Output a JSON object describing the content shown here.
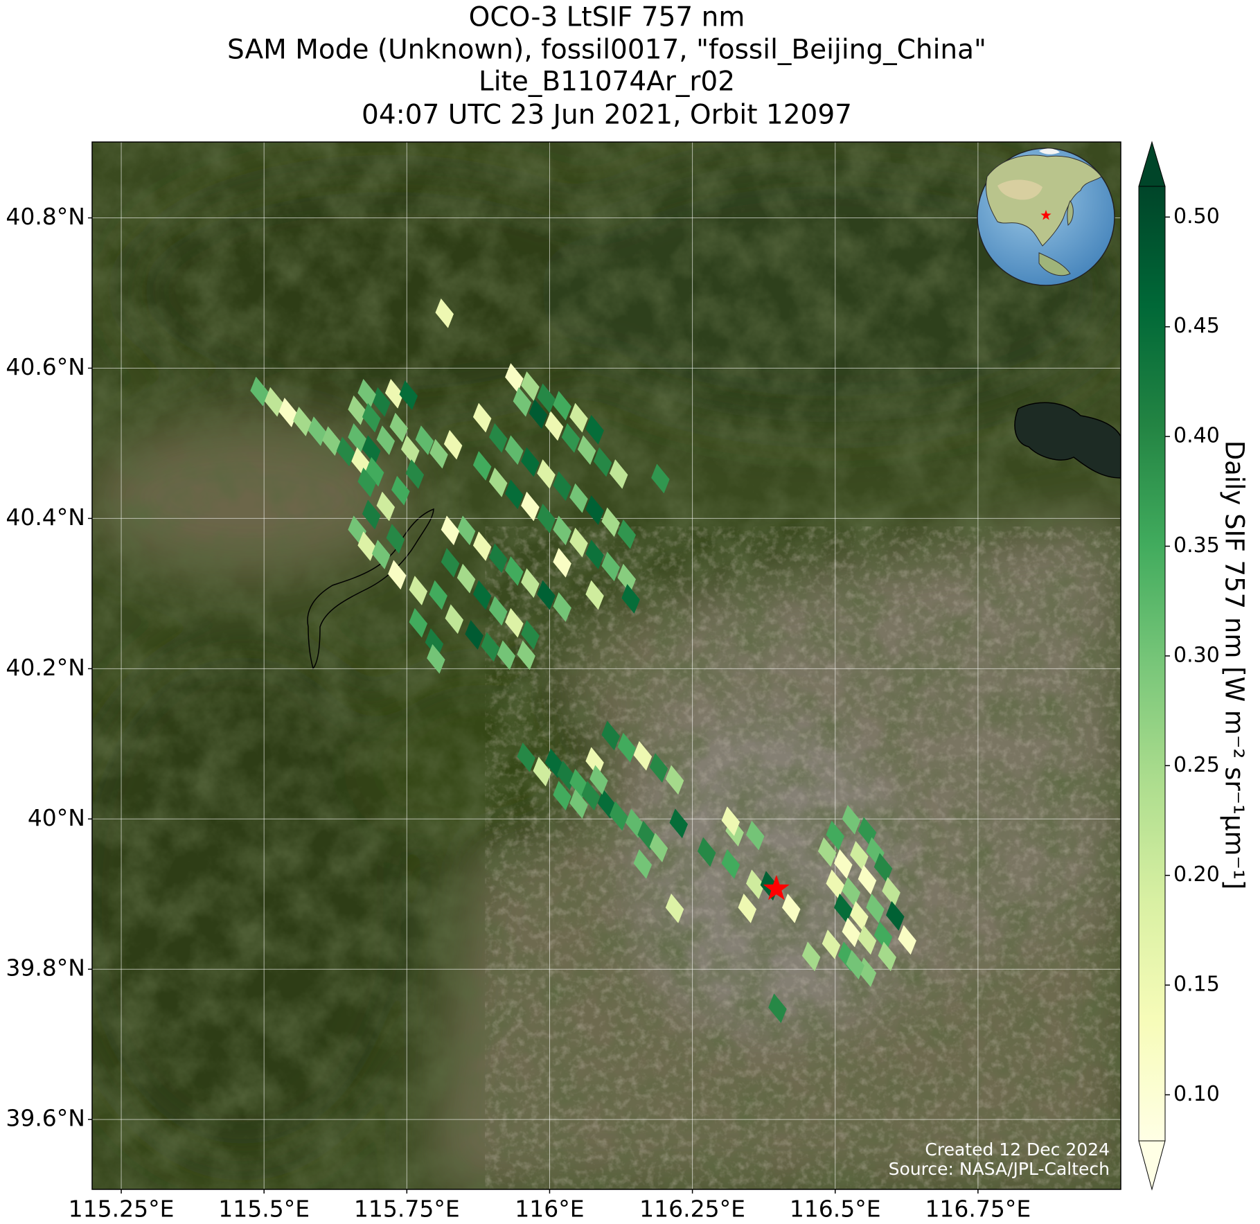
{
  "chart_data": {
    "type": "map",
    "title": [
      "OCO-3 LtSIF 757 nm",
      "SAM Mode (Unknown), fossil0017, \"fossil_Beijing_China\"",
      "Lite_B11074Ar_r02",
      "04:07 UTC 23 Jun 2021, Orbit 12097"
    ],
    "xlim": [
      115.199,
      117.0
    ],
    "ylim": [
      39.507,
      40.901
    ],
    "xticks": [
      {
        "value": 115.25,
        "label": "115.25°E"
      },
      {
        "value": 115.5,
        "label": "115.5°E"
      },
      {
        "value": 115.75,
        "label": "115.75°E"
      },
      {
        "value": 116,
        "label": "116°E"
      },
      {
        "value": 116.25,
        "label": "116.25°E"
      },
      {
        "value": 116.5,
        "label": "116.5°E"
      },
      {
        "value": 116.75,
        "label": "116.75°E"
      }
    ],
    "yticks": [
      {
        "value": 39.6,
        "label": "39.6°N"
      },
      {
        "value": 39.8,
        "label": "39.8°N"
      },
      {
        "value": 40,
        "label": "40°N"
      },
      {
        "value": 40.2,
        "label": "40.2°N"
      },
      {
        "value": 40.4,
        "label": "40.4°N"
      },
      {
        "value": 40.6,
        "label": "40.6°N"
      },
      {
        "value": 40.8,
        "label": "40.8°N"
      }
    ],
    "grid": true,
    "footprints": {
      "lon": [
        115.492,
        115.517,
        115.542,
        115.567,
        115.593,
        115.618,
        115.643,
        115.663,
        115.669,
        115.688,
        115.694,
        115.713,
        115.736,
        115.728,
        115.705,
        115.68,
        115.663,
        115.688,
        115.753,
        115.756,
        115.781,
        115.806,
        115.831,
        115.764,
        115.739,
        115.713,
        115.68,
        115.688,
        115.663,
        115.68,
        115.705,
        115.73,
        115.733,
        115.77,
        115.816,
        115.938,
        115.966,
        115.994,
        116.022,
        116.051,
        116.079,
        115.952,
        115.98,
        116.008,
        116.037,
        116.065,
        116.093,
        116.121,
        115.882,
        115.91,
        115.938,
        115.966,
        115.994,
        116.022,
        116.051,
        116.079,
        116.107,
        116.135,
        115.882,
        115.91,
        115.938,
        115.966,
        115.994,
        116.022,
        116.051,
        116.079,
        116.107,
        116.135,
        115.854,
        115.882,
        115.91,
        115.938,
        115.966,
        115.994,
        116.022,
        115.826,
        115.854,
        115.882,
        115.91,
        115.938,
        115.966,
        115.805,
        115.833,
        115.868,
        115.896,
        115.924,
        115.959,
        115.77,
        115.798,
        115.801,
        116.142,
        116.194,
        115.826,
        116.022,
        116.079,
        115.959,
        115.987,
        116.008,
        116.029,
        116.051,
        116.079,
        116.072,
        116.1,
        116.086,
        116.121,
        116.149,
        116.17,
        116.191,
        116.226,
        116.163,
        116.107,
        116.135,
        116.163,
        116.191,
        116.219,
        116.022,
        116.051,
        116.275,
        116.317,
        116.36,
        116.346,
        116.385,
        116.423,
        116.324,
        116.36,
        116.317,
        116.219,
        116.399,
        116.5,
        116.528,
        116.556,
        116.486,
        116.514,
        116.542,
        116.57,
        116.584,
        116.5,
        116.528,
        116.556,
        116.598,
        116.514,
        116.542,
        116.57,
        116.605,
        116.528,
        116.556,
        116.584,
        116.626,
        116.591,
        116.458,
        116.493,
        116.521,
        116.556,
        116.535
      ],
      "lat": [
        40.569,
        40.555,
        40.541,
        40.529,
        40.516,
        40.503,
        40.489,
        40.507,
        40.475,
        40.491,
        40.462,
        40.504,
        40.521,
        40.566,
        40.555,
        40.566,
        40.544,
        40.534,
        40.564,
        40.491,
        40.504,
        40.486,
        40.498,
        40.459,
        40.437,
        40.416,
        40.448,
        40.405,
        40.384,
        40.363,
        40.352,
        40.373,
        40.325,
        40.304,
        40.673,
        40.587,
        40.576,
        40.56,
        40.55,
        40.534,
        40.518,
        40.555,
        40.539,
        40.523,
        40.507,
        40.491,
        40.475,
        40.459,
        40.534,
        40.507,
        40.491,
        40.475,
        40.459,
        40.443,
        40.427,
        40.411,
        40.395,
        40.379,
        40.47,
        40.448,
        40.432,
        40.416,
        40.4,
        40.384,
        40.368,
        40.352,
        40.336,
        40.32,
        40.384,
        40.363,
        40.347,
        40.33,
        40.314,
        40.298,
        40.282,
        40.341,
        40.32,
        40.298,
        40.277,
        40.261,
        40.245,
        40.298,
        40.266,
        40.245,
        40.229,
        40.218,
        40.218,
        40.261,
        40.234,
        40.213,
        40.293,
        40.453,
        40.384,
        40.341,
        40.298,
        40.082,
        40.063,
        40.074,
        40.058,
        40.047,
        40.076,
        40.031,
        40.02,
        40.052,
        40.004,
        39.994,
        39.978,
        39.962,
        39.994,
        39.94,
        40.111,
        40.095,
        40.084,
        40.068,
        40.052,
        40.031,
        40.02,
        39.956,
        39.94,
        39.913,
        39.881,
        39.911,
        39.881,
        39.983,
        39.978,
        39.997,
        39.881,
        39.748,
        39.978,
        39.999,
        39.983,
        39.956,
        39.94,
        39.951,
        39.956,
        39.935,
        39.913,
        39.903,
        39.919,
        39.903,
        39.881,
        39.871,
        39.881,
        39.871,
        39.849,
        39.839,
        39.844,
        39.839,
        39.817,
        39.817,
        39.833,
        39.817,
        39.796,
        39.806
      ],
      "values": [
        0.32,
        0.22,
        0.12,
        0.25,
        0.3,
        0.28,
        0.4,
        0.32,
        0.15,
        0.44,
        0.35,
        0.3,
        0.28,
        0.15,
        0.42,
        0.3,
        0.26,
        0.38,
        0.45,
        0.22,
        0.32,
        0.28,
        0.15,
        0.4,
        0.35,
        0.2,
        0.38,
        0.42,
        0.3,
        0.18,
        0.3,
        0.4,
        0.12,
        0.2,
        0.15,
        0.12,
        0.25,
        0.4,
        0.35,
        0.2,
        0.45,
        0.3,
        0.48,
        0.15,
        0.38,
        0.28,
        0.4,
        0.22,
        0.15,
        0.4,
        0.32,
        0.45,
        0.18,
        0.42,
        0.3,
        0.47,
        0.25,
        0.38,
        0.35,
        0.25,
        0.45,
        0.12,
        0.4,
        0.3,
        0.2,
        0.44,
        0.32,
        0.28,
        0.3,
        0.15,
        0.42,
        0.35,
        0.22,
        0.47,
        0.3,
        0.4,
        0.25,
        0.45,
        0.32,
        0.18,
        0.4,
        0.35,
        0.22,
        0.48,
        0.4,
        0.3,
        0.28,
        0.35,
        0.42,
        0.3,
        0.45,
        0.38,
        0.12,
        0.12,
        0.2,
        0.4,
        0.2,
        0.45,
        0.42,
        0.35,
        0.15,
        0.4,
        0.45,
        0.3,
        0.38,
        0.32,
        0.4,
        0.28,
        0.45,
        0.3,
        0.42,
        0.35,
        0.15,
        0.4,
        0.25,
        0.35,
        0.3,
        0.4,
        0.35,
        0.2,
        0.15,
        0.47,
        0.12,
        0.25,
        0.3,
        0.15,
        0.18,
        0.4,
        0.35,
        0.3,
        0.38,
        0.25,
        0.12,
        0.2,
        0.32,
        0.4,
        0.15,
        0.28,
        0.12,
        0.22,
        0.45,
        0.15,
        0.3,
        0.47,
        0.12,
        0.2,
        0.35,
        0.12,
        0.25,
        0.25,
        0.18,
        0.35,
        0.28,
        0.3
      ]
    },
    "target": {
      "lon": 116.397,
      "lat": 39.907,
      "color": "#ff0000"
    },
    "colorbar": {
      "label": "Daily SIF 757 nm [W m⁻² sr⁻¹μm⁻¹]",
      "lim": [
        0.079,
        0.514
      ],
      "ticks": [
        {
          "value": 0.1,
          "label": "0.10"
        },
        0.15,
        {
          "value": 0.2,
          "label": "0.20"
        },
        0.25,
        {
          "value": 0.3,
          "label": "0.30"
        },
        0.35,
        {
          "value": 0.4,
          "label": "0.40"
        },
        0.45,
        {
          "value": 0.5,
          "label": "0.50"
        }
      ],
      "colormap": [
        "#ffffe5",
        "#f7fcb9",
        "#d9f0a3",
        "#addd8e",
        "#78c679",
        "#41ab5d",
        "#238443",
        "#006837",
        "#004529"
      ]
    },
    "annotations": [
      "Created 12 Dec 2024",
      "Source: NASA/JPL-Caltech"
    ]
  }
}
